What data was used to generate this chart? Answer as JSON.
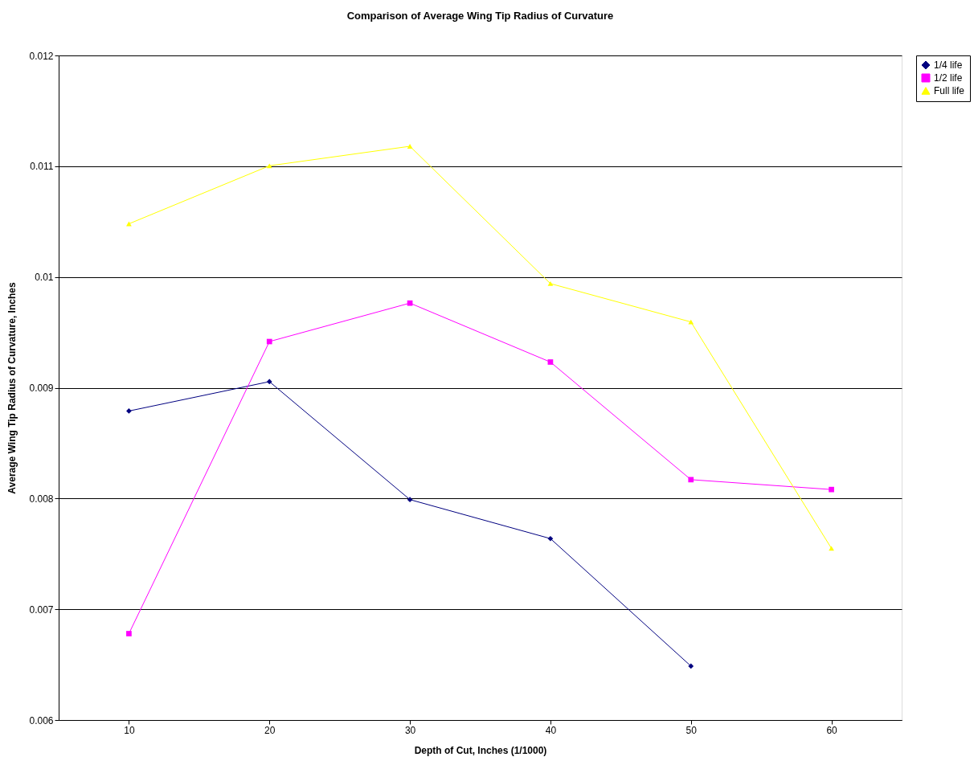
{
  "chart_data": {
    "type": "line",
    "title": "Comparison of Average Wing Tip Radius of Curvature",
    "xlabel": "Depth of Cut, Inches (1/1000)",
    "ylabel": "Average Wing Tip Radius of Curvature, Inches",
    "categories": [
      "10",
      "20",
      "30",
      "40",
      "50",
      "60"
    ],
    "series": [
      {
        "name": "1/4 life",
        "color": "#000080",
        "marker": "diamond",
        "values": [
          0.00879,
          0.009055,
          0.00799,
          0.007638,
          0.006487,
          null
        ]
      },
      {
        "name": "1/2 life",
        "color": "#ff00ff",
        "marker": "square",
        "values": [
          0.00678,
          0.009417,
          0.009764,
          0.009232,
          0.00817,
          0.008081
        ]
      },
      {
        "name": "Full life",
        "color": "#ffff00",
        "marker": "triangle",
        "values": [
          0.01048,
          0.011004,
          0.01118,
          0.00994,
          0.009594,
          0.00755
        ]
      }
    ],
    "ylim": [
      0.006,
      0.012
    ],
    "yticks": [
      0.006,
      0.007,
      0.008,
      0.009,
      0.01,
      0.011,
      0.012
    ],
    "grid": "y",
    "legend": "right"
  }
}
